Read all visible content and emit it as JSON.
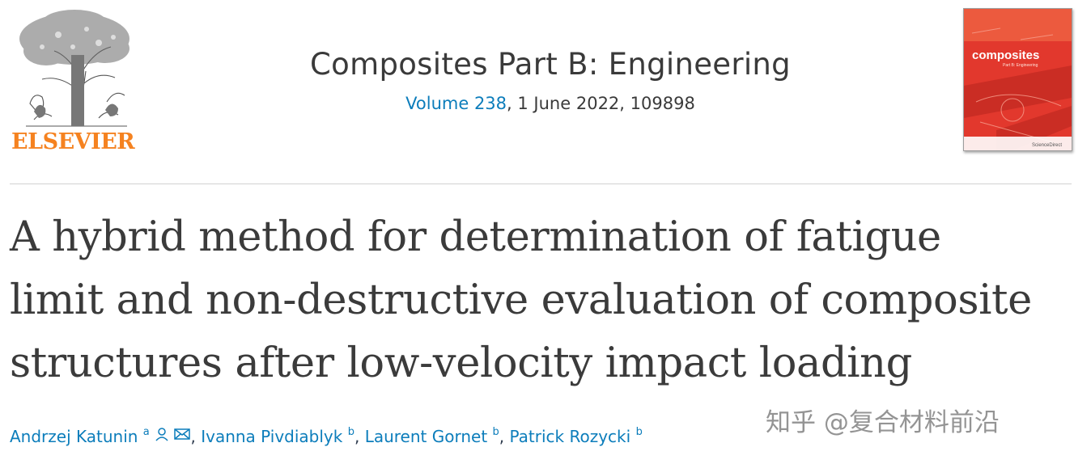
{
  "publisher": {
    "wordmark": "ELSEVIER",
    "brand_color": "#f58220"
  },
  "journal": {
    "title": "Composites Part B: Engineering",
    "volume_link": "Volume 238",
    "issue_rest": ", 1 June 2022, 109898",
    "link_color": "#0c7dbb"
  },
  "cover": {
    "title": "composites",
    "subtitle": "Part B: Engineering",
    "footer": "ScienceDirect",
    "color": "#e2382d"
  },
  "article": {
    "title_lines": [
      "A hybrid method for determination of fatigue",
      "limit and non-destructive evaluation of composite",
      "structures after low-velocity impact loading"
    ]
  },
  "authors": [
    {
      "name": "Andrzej Katunin",
      "affil": "a"
    },
    {
      "name": "Ivanna Pivdiablyk",
      "affil": "b"
    },
    {
      "name": "Laurent Gornet",
      "affil": "b"
    },
    {
      "name": "Patrick Rozycki",
      "affil": "b"
    }
  ],
  "watermark": "知乎 @复合材料前沿"
}
